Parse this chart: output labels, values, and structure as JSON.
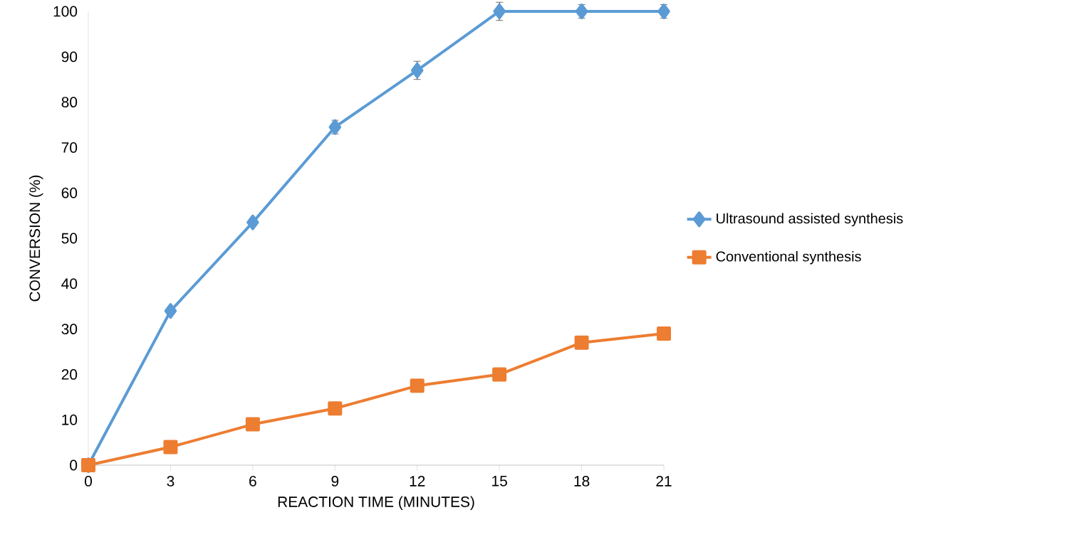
{
  "chart_data": {
    "type": "line",
    "xlabel": "REACTION TIME (MINUTES)",
    "ylabel": "CONVERSION (%)",
    "x": [
      0,
      3,
      6,
      9,
      12,
      15,
      18,
      21
    ],
    "series": [
      {
        "name": "Ultrasound assisted synthesis",
        "color": "#5b9bd5",
        "marker": "diamond",
        "values": [
          0,
          34,
          53.5,
          74.5,
          87,
          100,
          100,
          100
        ],
        "errors": [
          null,
          null,
          null,
          1.5,
          2,
          2,
          1.5,
          1.5
        ]
      },
      {
        "name": "Conventional synthesis",
        "color": "#ed7d31",
        "marker": "square",
        "values": [
          0,
          4,
          9,
          12.5,
          17.5,
          20,
          27,
          29
        ]
      }
    ],
    "xlim": [
      0,
      21
    ],
    "xticks": [
      0,
      3,
      6,
      9,
      12,
      15,
      18,
      21
    ],
    "ylim": [
      0,
      100
    ],
    "yticks": [
      0,
      10,
      20,
      30,
      40,
      50,
      60,
      70,
      80,
      90,
      100
    ],
    "grid": false,
    "legend": "right"
  }
}
